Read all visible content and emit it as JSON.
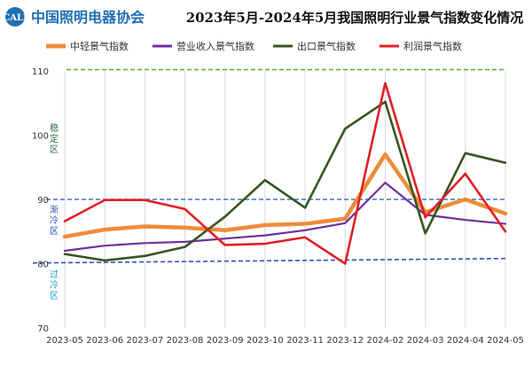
{
  "header": {
    "logo_mark": "CALI",
    "logo_name": "中国照明电器协会",
    "title": "2023年5月-2024年5月我国照明行业景气指数变化情况"
  },
  "colors": {
    "series": [
      "#ee8c3a",
      "#7030a0",
      "#375623",
      "#e31e24"
    ],
    "stable_line": "#5db534",
    "gradual_line": "#4472c4",
    "overcool_line": "#2f55b5",
    "zone_stable": "#2e6b3d",
    "zone_gradual": "#2f55b5",
    "zone_overcool": "#1f9cc8",
    "logo": "#1f6fb3"
  },
  "zones": {
    "stable": [
      "稳",
      "定",
      "区"
    ],
    "gradual": [
      "渐",
      "冷",
      "区"
    ],
    "overcool": [
      "过",
      "冷",
      "区"
    ]
  },
  "chart_data": {
    "type": "line",
    "title": "2023年5月-2024年5月我国照明行业景气指数变化情况",
    "categories": [
      "2023-05",
      "2023-06",
      "2023-07",
      "2023-08",
      "2023-09",
      "2023-10",
      "2023-11",
      "2023-12",
      "2024-02",
      "2024-03",
      "2024-04",
      "2024-05"
    ],
    "ylim": [
      70,
      110
    ],
    "yticks": [
      70,
      80,
      90,
      100,
      110
    ],
    "grid": "vertical",
    "legend_position": "top",
    "reference_lines": [
      {
        "zone": "stable",
        "value": 110.2,
        "style": "dashed"
      },
      {
        "zone": "gradual",
        "value": 90,
        "style": "dashed"
      },
      {
        "zone": "overcool",
        "value_start": 80.1,
        "value_end": 80.8,
        "style": "dashed"
      }
    ],
    "series": [
      {
        "name": "中轻景气指数",
        "values": [
          84.2,
          85.3,
          85.8,
          85.6,
          85.2,
          86.0,
          86.2,
          87.0,
          97.0,
          88.0,
          90.0,
          87.8
        ]
      },
      {
        "name": "营业收入景气指数",
        "values": [
          82.0,
          82.8,
          83.2,
          83.4,
          83.9,
          84.4,
          85.2,
          86.3,
          92.6,
          87.6,
          86.8,
          86.2
        ]
      },
      {
        "name": "出口景气指数",
        "values": [
          81.5,
          80.5,
          81.2,
          82.6,
          87.3,
          93.0,
          88.7,
          101.0,
          105.2,
          84.7,
          97.2,
          95.7
        ]
      },
      {
        "name": "利润景气指数",
        "values": [
          86.6,
          89.9,
          89.9,
          88.5,
          82.9,
          83.1,
          84.1,
          80.0,
          108.1,
          87.2,
          94.0,
          85.0
        ]
      }
    ]
  }
}
